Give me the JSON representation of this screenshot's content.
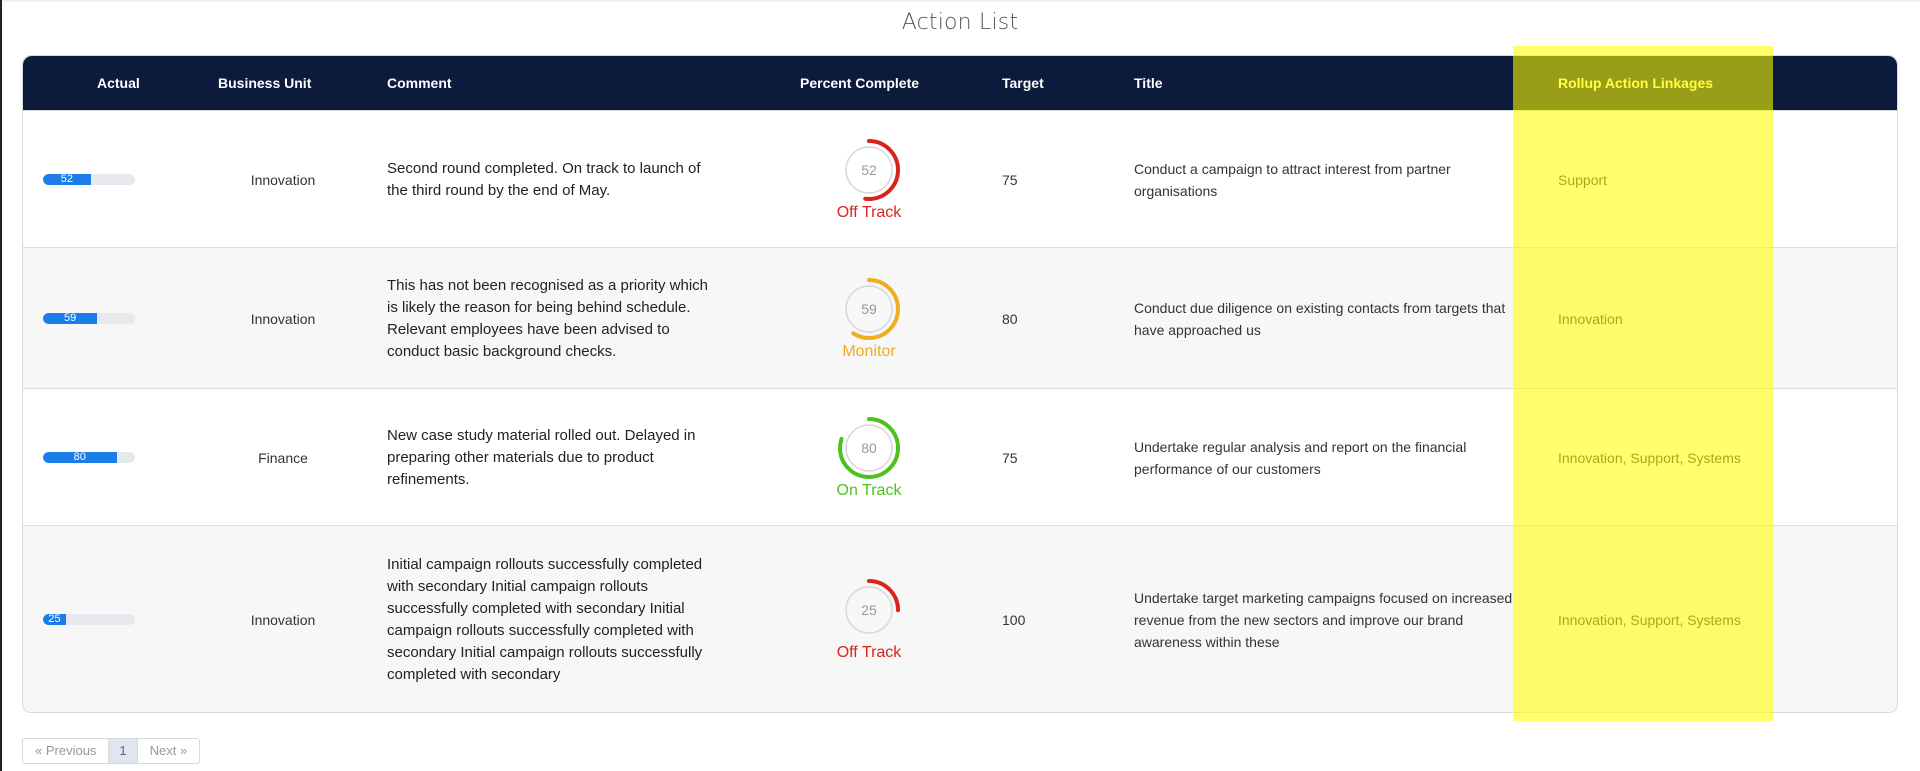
{
  "page": {
    "title": "Action List"
  },
  "table": {
    "headers": {
      "actual": "Actual",
      "business_unit": "Business Unit",
      "comment": "Comment",
      "percent_complete": "Percent Complete",
      "target": "Target",
      "title": "Title",
      "rollup": "Rollup Action Linkages"
    },
    "rows": [
      {
        "actual": "52",
        "business_unit": "Innovation",
        "comment": "Second round completed. On track to launch of the third round by the end of May.",
        "percent": "52",
        "status": "Off Track",
        "status_color": "#d9241c",
        "target": "75",
        "title": "Conduct a campaign to attract interest from partner organisations",
        "rollup": "Support"
      },
      {
        "actual": "59",
        "business_unit": "Innovation",
        "comment": "This has not been recognised as a priority which is likely the reason for being behind schedule. Relevant employees have been advised to conduct basic background checks.",
        "percent": "59",
        "status": "Monitor",
        "status_color": "#f0ad1e",
        "target": "80",
        "title": "Conduct due diligence on existing contacts from targets that have approached us",
        "rollup": "Innovation"
      },
      {
        "actual": "80",
        "business_unit": "Finance",
        "comment": "New case study material rolled out. Delayed in preparing other materials due to product refinements.",
        "percent": "80",
        "status": "On Track",
        "status_color": "#4cc21e",
        "target": "75",
        "title": "Undertake regular analysis and report on the financial performance of our customers",
        "rollup": "Innovation, Support, Systems"
      },
      {
        "actual": "25",
        "business_unit": "Innovation",
        "comment": "Initial campaign rollouts successfully completed with secondary Initial campaign rollouts successfully completed with secondary Initial campaign rollouts successfully completed with secondary Initial campaign rollouts successfully completed with secondary",
        "percent": "25",
        "status": "Off Track",
        "status_color": "#d9241c",
        "target": "100",
        "title": "Undertake target marketing campaigns focused on increased revenue from the new sectors and improve our brand awareness within these",
        "rollup": "Innovation, Support, Systems"
      }
    ]
  },
  "pagination": {
    "previous_label": "«  Previous",
    "page": "1",
    "next_label": "Next  »"
  },
  "colors": {
    "header_bg": "#0c1a3b",
    "bar_fill": "#1a7de8",
    "highlight": "#ffff00"
  }
}
